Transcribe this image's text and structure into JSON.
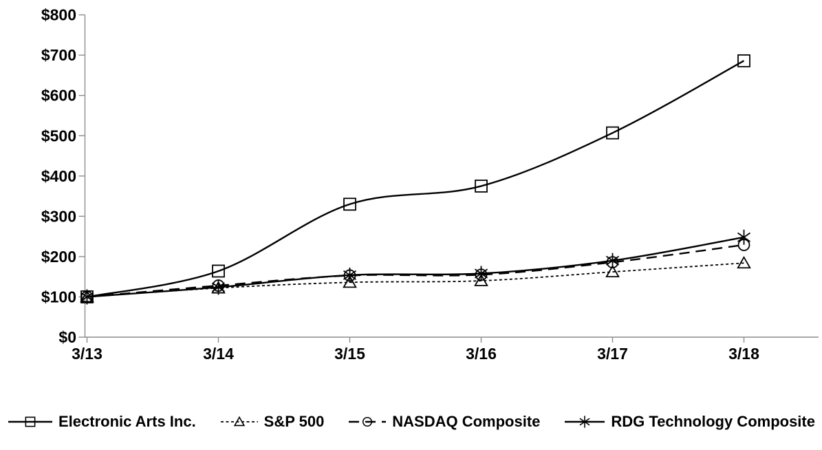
{
  "chart_data": {
    "type": "line",
    "title": "",
    "xlabel": "",
    "ylabel": "",
    "categories": [
      "3/13",
      "3/14",
      "3/15",
      "3/16",
      "3/17",
      "3/18"
    ],
    "ylim": [
      0,
      800
    ],
    "y_tick_step": 100,
    "y_tick_prefix": "$",
    "y_tick_labels": [
      "$0",
      "$100",
      "$200",
      "$300",
      "$400",
      "$500",
      "$600",
      "$700",
      "$800"
    ],
    "grid": false,
    "legend_position": "bottom",
    "series": [
      {
        "name": "Electronic Arts Inc.",
        "values": [
          100,
          164,
          330,
          375,
          507,
          686
        ],
        "line": "solid",
        "marker": "square"
      },
      {
        "name": "S&P 500",
        "values": [
          100,
          122,
          136,
          140,
          162,
          184
        ],
        "line": "dotted",
        "marker": "triangle"
      },
      {
        "name": "NASDAQ Composite",
        "values": [
          100,
          128,
          153,
          155,
          186,
          229
        ],
        "line": "dashed",
        "marker": "circle"
      },
      {
        "name": "RDG Technology Composite",
        "values": [
          100,
          124,
          154,
          158,
          190,
          248
        ],
        "line": "solid",
        "marker": "asterisk"
      }
    ],
    "colors": {
      "series": "#000000",
      "axis": "#8c8c8c",
      "text": "#000000",
      "background": "#ffffff"
    }
  }
}
